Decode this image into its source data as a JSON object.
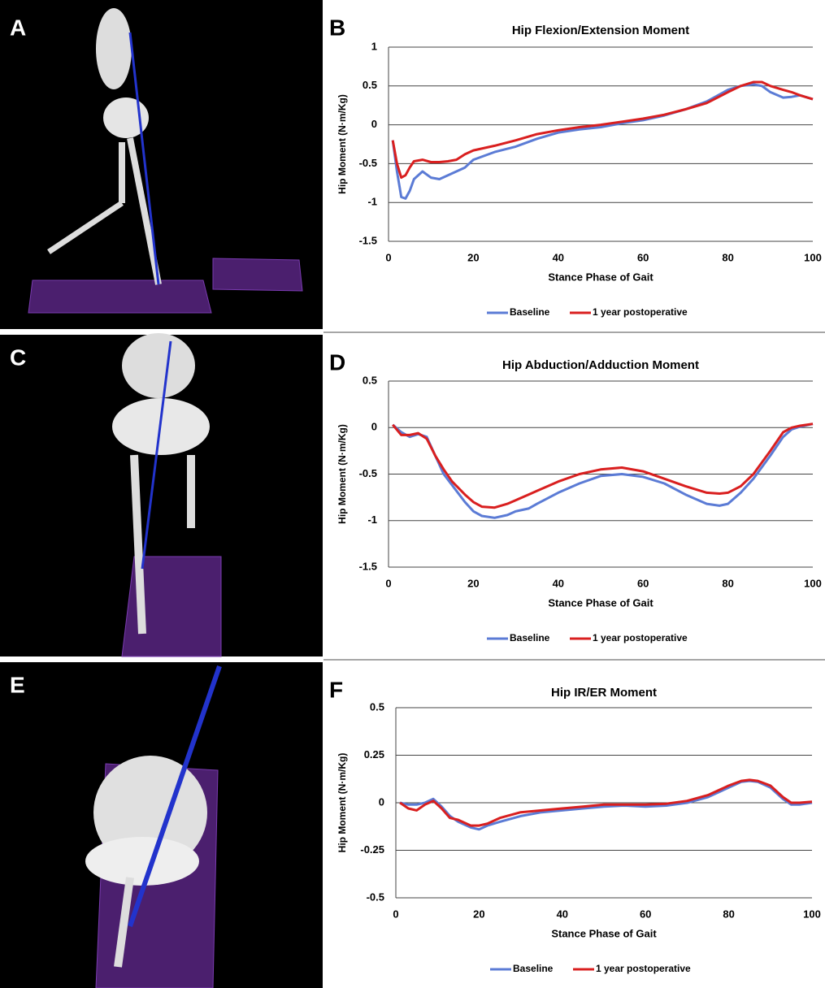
{
  "panels": [
    "A",
    "C",
    "E"
  ],
  "chart_data": [
    {
      "type": "line",
      "panel": "B",
      "title": "Hip Flexion/Extension Moment",
      "x_label": "Stance Phase of Gait",
      "y_label": "Hip Moment (N·m/Kg)",
      "x": [
        1,
        2,
        3,
        4,
        5,
        6,
        8,
        10,
        12,
        14,
        16,
        18,
        20,
        25,
        30,
        35,
        40,
        45,
        50,
        55,
        60,
        65,
        70,
        75,
        80,
        83,
        86,
        88,
        90,
        93,
        95,
        97,
        100
      ],
      "series": [
        {
          "name": "Baseline",
          "color": "#5b7bd5",
          "values": [
            -0.2,
            -0.6,
            -0.93,
            -0.95,
            -0.85,
            -0.7,
            -0.6,
            -0.68,
            -0.7,
            -0.65,
            -0.6,
            -0.55,
            -0.45,
            -0.35,
            -0.28,
            -0.18,
            -0.1,
            -0.06,
            -0.03,
            0.02,
            0.06,
            0.12,
            0.2,
            0.3,
            0.45,
            0.5,
            0.52,
            0.5,
            0.42,
            0.35,
            0.36,
            0.38,
            0.33
          ]
        },
        {
          "name": "1 year postoperative",
          "color": "#d91f1f",
          "values": [
            -0.2,
            -0.5,
            -0.68,
            -0.65,
            -0.55,
            -0.47,
            -0.45,
            -0.48,
            -0.48,
            -0.47,
            -0.45,
            -0.38,
            -0.33,
            -0.27,
            -0.2,
            -0.12,
            -0.07,
            -0.03,
            0.0,
            0.04,
            0.08,
            0.13,
            0.2,
            0.28,
            0.42,
            0.5,
            0.55,
            0.55,
            0.5,
            0.45,
            0.42,
            0.38,
            0.33
          ]
        }
      ],
      "xlim": [
        0,
        100
      ],
      "xticks": [
        0,
        20,
        40,
        60,
        80,
        100
      ],
      "ylim": [
        -1.5,
        1
      ],
      "yticks": [
        1,
        0.5,
        0,
        -0.5,
        -1,
        -1.5
      ],
      "grid": true,
      "legend": "bottom"
    },
    {
      "type": "line",
      "panel": "D",
      "title": "Hip Abduction/Adduction Moment",
      "x_label": "Stance Phase of Gait",
      "y_label": "Hip Moment (N·m/Kg)",
      "x": [
        1,
        3,
        5,
        7,
        9,
        11,
        13,
        15,
        18,
        20,
        22,
        25,
        28,
        30,
        33,
        35,
        40,
        45,
        50,
        55,
        60,
        65,
        70,
        75,
        78,
        80,
        83,
        86,
        90,
        93,
        95,
        97,
        100
      ],
      "series": [
        {
          "name": "Baseline",
          "color": "#5b7bd5",
          "values": [
            0.03,
            -0.05,
            -0.1,
            -0.07,
            -0.1,
            -0.3,
            -0.5,
            -0.62,
            -0.8,
            -0.9,
            -0.95,
            -0.97,
            -0.94,
            -0.9,
            -0.87,
            -0.82,
            -0.7,
            -0.6,
            -0.52,
            -0.5,
            -0.53,
            -0.6,
            -0.72,
            -0.82,
            -0.84,
            -0.82,
            -0.7,
            -0.55,
            -0.3,
            -0.1,
            -0.02,
            0.01,
            0.04
          ]
        },
        {
          "name": "1 year postoperative",
          "color": "#d91f1f",
          "values": [
            0.03,
            -0.08,
            -0.08,
            -0.06,
            -0.12,
            -0.3,
            -0.45,
            -0.58,
            -0.72,
            -0.8,
            -0.85,
            -0.86,
            -0.82,
            -0.78,
            -0.72,
            -0.68,
            -0.58,
            -0.5,
            -0.45,
            -0.43,
            -0.47,
            -0.55,
            -0.63,
            -0.7,
            -0.71,
            -0.7,
            -0.63,
            -0.5,
            -0.25,
            -0.05,
            0,
            0.02,
            0.04
          ]
        }
      ],
      "xlim": [
        0,
        100
      ],
      "xticks": [
        0,
        20,
        40,
        60,
        80,
        100
      ],
      "ylim": [
        -1.5,
        0.5
      ],
      "yticks": [
        0.5,
        0,
        -0.5,
        -1,
        -1.5
      ],
      "grid": true,
      "legend": "bottom"
    },
    {
      "type": "line",
      "panel": "F",
      "title": "Hip IR/ER Moment",
      "x_label": "Stance Phase of Gait",
      "y_label": "Hip Moment (N·m/Kg)",
      "x": [
        1,
        3,
        5,
        7,
        9,
        11,
        13,
        15,
        18,
        20,
        22,
        25,
        30,
        35,
        40,
        45,
        50,
        55,
        60,
        65,
        70,
        75,
        80,
        83,
        85,
        87,
        90,
        93,
        95,
        97,
        100
      ],
      "series": [
        {
          "name": "Baseline",
          "color": "#5b7bd5",
          "values": [
            0,
            -0.01,
            -0.01,
            0.0,
            0.02,
            -0.02,
            -0.07,
            -0.1,
            -0.13,
            -0.14,
            -0.12,
            -0.1,
            -0.07,
            -0.05,
            -0.04,
            -0.03,
            -0.02,
            -0.015,
            -0.02,
            -0.015,
            0.0,
            0.03,
            0.08,
            0.11,
            0.115,
            0.11,
            0.08,
            0.02,
            -0.01,
            -0.01,
            0.0
          ]
        },
        {
          "name": "1 year postoperative",
          "color": "#d91f1f",
          "values": [
            0,
            -0.03,
            -0.04,
            -0.01,
            0.01,
            -0.03,
            -0.08,
            -0.09,
            -0.12,
            -0.12,
            -0.11,
            -0.08,
            -0.05,
            -0.04,
            -0.03,
            -0.02,
            -0.01,
            -0.01,
            -0.01,
            -0.005,
            0.01,
            0.04,
            0.09,
            0.115,
            0.12,
            0.115,
            0.09,
            0.03,
            0.0,
            0.0,
            0.005
          ]
        }
      ],
      "xlim": [
        0,
        100
      ],
      "xticks": [
        0,
        20,
        40,
        60,
        80,
        100
      ],
      "ylim": [
        -0.5,
        0.5
      ],
      "yticks": [
        0.5,
        0.25,
        0,
        -0.25,
        -0.5
      ],
      "grid": true,
      "legend": "bottom"
    }
  ]
}
